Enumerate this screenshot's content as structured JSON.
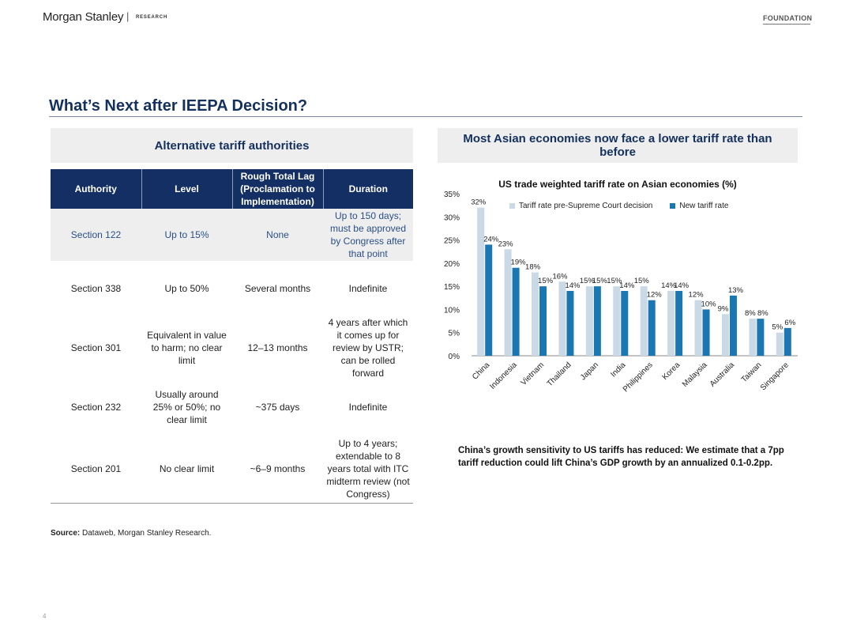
{
  "header": {
    "brand": "Morgan Stanley",
    "brand_sep": "|",
    "brand_sub": "RESEARCH",
    "tag": "FOUNDATION"
  },
  "page": {
    "title": "What’s Next after IEEPA Decision?",
    "page_number": "4"
  },
  "left_panel": {
    "title": "Alternative tariff authorities",
    "columns": [
      "Authority",
      "Level",
      "Rough Total Lag (Proclamation to Implementation)",
      "Duration"
    ],
    "rows": [
      {
        "authority": "Section 122",
        "level": "Up to 15%",
        "lag": "None",
        "duration": "Up to 150 days; must be approved by Congress after that point"
      },
      {
        "authority": "Section 338",
        "level": "Up to 50%",
        "lag": "Several months",
        "duration": "Indefinite"
      },
      {
        "authority": "Section 301",
        "level": "Equivalent in value to harm; no clear limit",
        "lag": "12–13 months",
        "duration": "4 years after which it comes up for review by USTR; can be rolled forward"
      },
      {
        "authority": "Section 232",
        "level": "Usually around 25% or 50%; no clear limit",
        "lag": "~375 days",
        "duration": "Indefinite"
      },
      {
        "authority": "Section 201",
        "level": "No clear limit",
        "lag": "~6–9 months",
        "duration": "Up to 4 years; extendable to 8 years total with ITC midterm review (not Congress)"
      }
    ]
  },
  "right_panel": {
    "title": "Most Asian economies now face a lower tariff rate than before",
    "commentary": "China’s growth sensitivity to US tariffs has reduced: We estimate that a 7pp tariff reduction could lift China’s GDP growth by an annualized 0.1-0.2pp."
  },
  "chart_data": {
    "type": "bar",
    "title": "US trade weighted tariff rate on Asian economies (%)",
    "categories": [
      "China",
      "Indonesia",
      "Vietnam",
      "Thailand",
      "Japan",
      "India",
      "Philippines",
      "Korea",
      "Malaysia",
      "Australia",
      "Taiwan",
      "Singapore"
    ],
    "series": [
      {
        "name": "Tariff rate pre-Supreme Court decision",
        "color": "#c9d9e6",
        "values": [
          32,
          23,
          18,
          16,
          15,
          15,
          15,
          14,
          12,
          9,
          8,
          5
        ]
      },
      {
        "name": "New tariff rate",
        "color": "#1a77b2",
        "values": [
          24,
          19,
          15,
          14,
          15,
          14,
          12,
          14,
          10,
          13,
          8,
          6
        ]
      }
    ],
    "value_suffix": "%",
    "yticks": [
      "0%",
      "5%",
      "10%",
      "15%",
      "20%",
      "25%",
      "30%",
      "35%"
    ],
    "ylim": [
      0,
      35
    ],
    "legend_position": "top"
  },
  "source": {
    "label": "Source:",
    "text": "Dataweb, Morgan Stanley Research."
  }
}
